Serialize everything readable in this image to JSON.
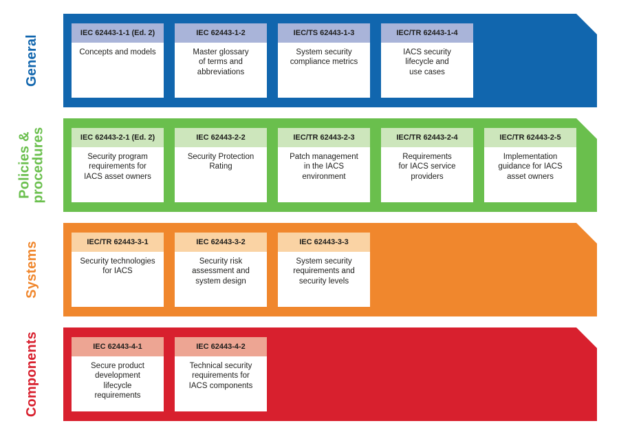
{
  "text_color": "#1d1d1b",
  "bands": [
    {
      "id": "general",
      "label": "General",
      "band_color": "#1166ae",
      "card_header_color": "#a9b4d9",
      "cards": [
        {
          "code": "IEC 62443-1-1 (Ed. 2)",
          "title": "Concepts and models"
        },
        {
          "code": "IEC 62443-1-2",
          "title": "Master glossary\nof terms and\nabbreviations"
        },
        {
          "code": "IEC/TS 62443-1-3",
          "title": "System security\ncompliance metrics"
        },
        {
          "code": "IEC/TR 62443-1-4",
          "title": "IACS security\nlifecycle and\nuse cases"
        }
      ]
    },
    {
      "id": "policies-procedures",
      "label": "Policies &\nprocedures",
      "band_color": "#6abf4d",
      "card_header_color": "#cde6bc",
      "cards": [
        {
          "code": "IEC 62443-2-1 (Ed. 2)",
          "title": "Security program\nrequirements for\nIACS asset owners"
        },
        {
          "code": "IEC 62443-2-2",
          "title": "Security Protection\nRating"
        },
        {
          "code": "IEC/TR 62443-2-3",
          "title": "Patch management\nin the IACS\nenvironment"
        },
        {
          "code": "IEC/TR 62443-2-4",
          "title": "Requirements\nfor IACS service\nproviders"
        },
        {
          "code": "IEC/TR 62443-2-5",
          "title": "Implementation\nguidance for IACS\nasset owners"
        }
      ]
    },
    {
      "id": "systems",
      "label": "Systems",
      "band_color": "#f0872d",
      "card_header_color": "#fad3a4",
      "cards": [
        {
          "code": "IEC/TR 62443-3-1",
          "title": "Security technologies\nfor IACS"
        },
        {
          "code": "IEC 62443-3-2",
          "title": "Security risk\nassessment and\nsystem design"
        },
        {
          "code": "IEC 62443-3-3",
          "title": "System security\nrequirements and\nsecurity levels"
        }
      ]
    },
    {
      "id": "components",
      "label": "Components",
      "band_color": "#d8202e",
      "card_header_color": "#eda593",
      "cards": [
        {
          "code": "IEC 62443-4-1",
          "title": "Secure product\ndevelopment\nlifecycle\nrequirements"
        },
        {
          "code": "IEC 62443-4-2",
          "title": "Technical security\nrequirements for\nIACS components"
        }
      ]
    }
  ]
}
